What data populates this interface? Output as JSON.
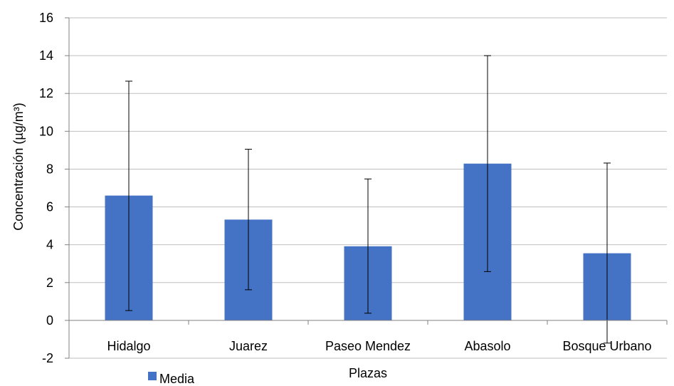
{
  "chart_data": {
    "type": "bar",
    "categories": [
      "Hidalgo",
      "Juarez",
      "Paseo Mendez",
      "Abasolo",
      "Bosque Urbano"
    ],
    "series": [
      {
        "name": "Media",
        "color": "#4472C4",
        "values": [
          6.6,
          5.33,
          3.92,
          8.29,
          3.55
        ],
        "error_low": [
          0.52,
          1.62,
          0.38,
          2.58,
          -1.2
        ],
        "error_high": [
          12.65,
          9.05,
          7.48,
          14.0,
          8.32
        ]
      }
    ],
    "xlabel": "Plazas",
    "ylabel": "Concentración (µg/m³)",
    "ylim": [
      -2,
      16
    ],
    "yticks": [
      -2,
      0,
      2,
      4,
      6,
      8,
      10,
      12,
      14,
      16
    ],
    "grid": true,
    "legend_position": "bottom-left"
  }
}
